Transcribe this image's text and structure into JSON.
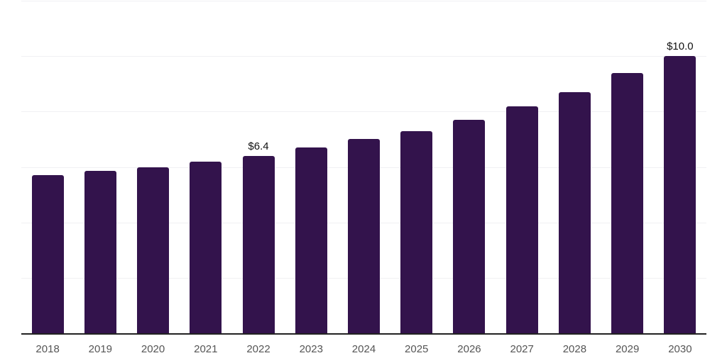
{
  "chart_data": {
    "type": "bar",
    "title": "",
    "xlabel": "",
    "ylabel": "",
    "categories": [
      "2018",
      "2019",
      "2020",
      "2021",
      "2022",
      "2023",
      "2024",
      "2025",
      "2026",
      "2027",
      "2028",
      "2029",
      "2030"
    ],
    "values": [
      5.7,
      5.85,
      6.0,
      6.2,
      6.4,
      6.7,
      7.0,
      7.3,
      7.7,
      8.2,
      8.7,
      9.4,
      10.0
    ],
    "data_labels": {
      "2022": "$6.4",
      "2030": "$10.0"
    },
    "ylim": [
      0,
      12
    ],
    "grid_step": 2,
    "grid": true,
    "legend": false,
    "y_tick_labels_visible": false
  },
  "colors": {
    "bar": "#33134C",
    "gridline": "#f0f0f3",
    "axis_line": "#222222",
    "tick_label": "#555555",
    "data_label": "#111111",
    "background": "#ffffff"
  }
}
